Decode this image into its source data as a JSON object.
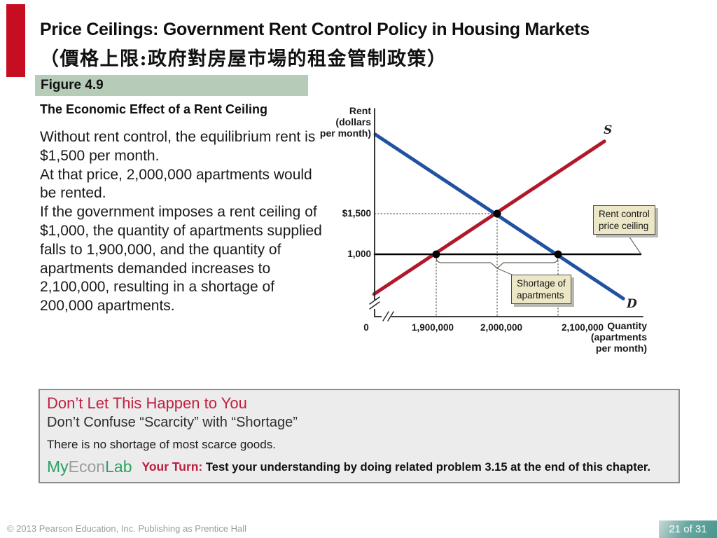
{
  "slide": {
    "title_en": "Price Ceilings: Government Rent Control Policy in Housing Markets",
    "title_zh": "（價格上限:政府對房屋市場的租金管制政策）",
    "figure_label": "Figure 4.9",
    "figure_subtitle": "The Economic Effect of a Rent Ceiling",
    "paragraphs": [
      "Without rent control, the equilibrium rent is $1,500 per month.",
      "At that price, 2,000,000 apartments would be rented.",
      "If the government imposes a rent ceiling of $1,000, the quantity of apartments supplied falls to 1,900,000, and the quantity of apartments demanded increases to 2,100,000, resulting in a shortage of 200,000 apartments."
    ],
    "accent_color": "#c60d22",
    "figure_band_color": "#b6ccb8"
  },
  "chart_data": {
    "type": "line",
    "ylabel_lines": [
      "Rent",
      "(dollars",
      "per month)"
    ],
    "xlabel_lines": [
      "Quantity",
      "(apartments",
      "per month)"
    ],
    "y_ticks": [
      {
        "rent": 1500,
        "label": "$1,500"
      },
      {
        "rent": 1000,
        "label": "1,000"
      }
    ],
    "x_ticks": [
      {
        "quantity": null,
        "label": "0"
      },
      {
        "quantity": 1900000,
        "label": "1,900,000"
      },
      {
        "quantity": 2000000,
        "label": "2,000,000"
      },
      {
        "quantity": 2100000,
        "label": "2,100,000"
      }
    ],
    "series": [
      {
        "name": "S",
        "color": "#b1192b",
        "points": [
          [
            1798000,
            510
          ],
          [
            2176000,
            2390
          ]
        ]
      },
      {
        "name": "D",
        "color": "#2151a3",
        "points": [
          [
            1800000,
            2475
          ],
          [
            2207000,
            455
          ]
        ]
      }
    ],
    "price_ceiling": {
      "rent": 1000
    },
    "equilibrium": {
      "quantity": 2000000,
      "rent": 1500
    },
    "key_points": [
      {
        "quantity": 1900000,
        "rent": 1000
      },
      {
        "quantity": 2000000,
        "rent": 1500
      },
      {
        "quantity": 2100000,
        "rent": 1000
      }
    ],
    "shortage": {
      "from_quantity": 1900000,
      "to_quantity": 2100000
    },
    "annotations": [
      {
        "id": "rent-control",
        "lines": [
          "Rent control",
          "price ceiling"
        ]
      },
      {
        "id": "shortage",
        "lines": [
          "Shortage of",
          "apartments"
        ]
      }
    ]
  },
  "callout_box": {
    "heading": "Don’t Let This Happen to You",
    "subheading": "Don’t Confuse “Scarcity” with “Shortage”",
    "body": "There is no shortage of most scarce goods.",
    "brand_my": "My",
    "brand_econ": "Econ",
    "brand_lab": "Lab",
    "your_turn_label": "Your Turn:",
    "your_turn_text": "Test your understanding by doing related problem 3.15 at the end of this chapter.",
    "heading_color": "#c22040",
    "brand_green": "#2aa263",
    "brand_gray": "#9b9b9b"
  },
  "footer": {
    "copyright": "© 2013 Pearson Education, Inc. Publishing as Prentice Hall",
    "page_indicator": "21 of 31",
    "badge_color": "#489690"
  }
}
